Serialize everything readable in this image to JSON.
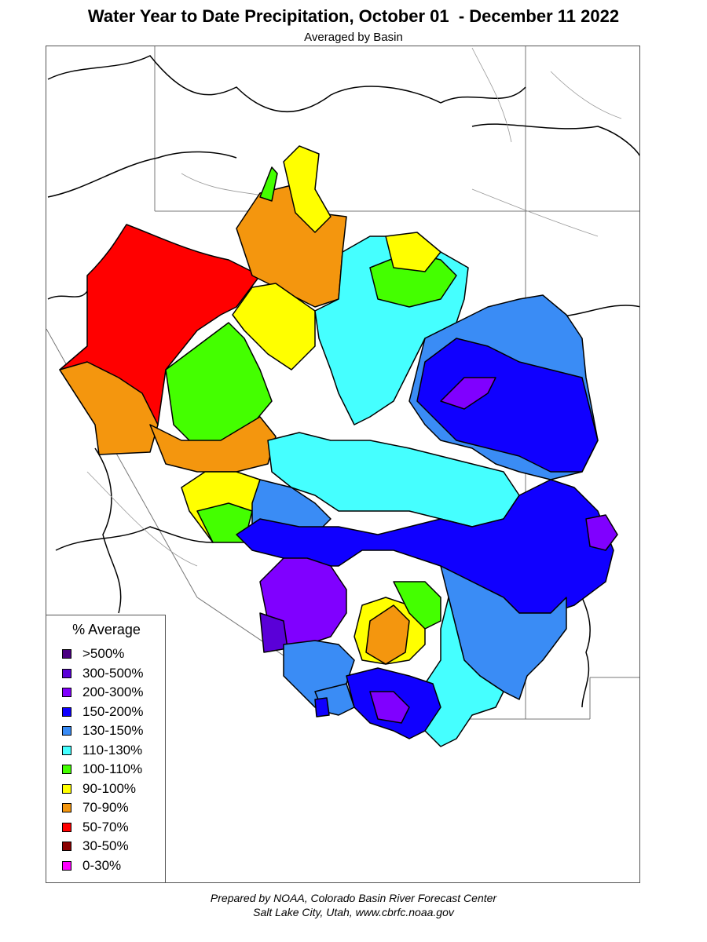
{
  "title": "Water Year to Date Precipitation, October 01  - December 11 2022",
  "subtitle": "Averaged by Basin",
  "legend": {
    "title": "% Average",
    "items": [
      {
        "label": ">500%",
        "color": "#4b0082"
      },
      {
        "label": "300-500%",
        "color": "#5a00d8"
      },
      {
        "label": "200-300%",
        "color": "#8000ff"
      },
      {
        "label": "150-200%",
        "color": "#1000ff"
      },
      {
        "label": "130-150%",
        "color": "#3a8cf5"
      },
      {
        "label": "110-130%",
        "color": "#45ffff"
      },
      {
        "label": "100-110%",
        "color": "#44ff00"
      },
      {
        "label": "90-100%",
        "color": "#ffff00"
      },
      {
        "label": "70-90%",
        "color": "#f4960e"
      },
      {
        "label": "50-70%",
        "color": "#ff0000"
      },
      {
        "label": "30-50%",
        "color": "#8b0000"
      },
      {
        "label": "0-30%",
        "color": "#ff00ff"
      }
    ]
  },
  "footer": {
    "line1": "Prepared by NOAA, Colorado Basin River Forecast Center",
    "line2": "Salt Lake City, Utah, www.cbrfc.noaa.gov"
  }
}
